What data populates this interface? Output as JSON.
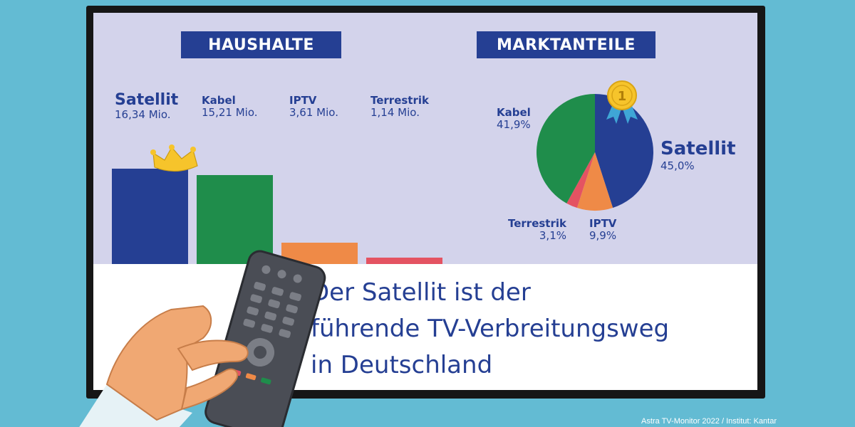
{
  "headers": {
    "households": "HAUSHALTE",
    "market_share": "MARKTANTEILE"
  },
  "headline": [
    "Der Satellit ist der",
    "führende TV-Verbreitungsweg",
    "in Deutschland"
  ],
  "source": "Astra TV-Monitor 2022 / Institut: Kantar",
  "badge": "1",
  "colors": {
    "satellit": "#253f93",
    "kabel": "#1f8d4b",
    "iptv": "#ef8a47",
    "terrestrik": "#e45362"
  },
  "chart_data": [
    {
      "type": "bar",
      "title": "HAUSHALTE",
      "categories": [
        "Satellit",
        "Kabel",
        "IPTV",
        "Terrestrik"
      ],
      "values": [
        16.34,
        15.21,
        3.61,
        1.14
      ],
      "unit": "Mio.",
      "labels": [
        "16,34 Mio.",
        "15,21 Mio.",
        "3,61 Mio.",
        "1,14 Mio."
      ]
    },
    {
      "type": "pie",
      "title": "MARKTANTEILE",
      "categories": [
        "Satellit",
        "IPTV",
        "Terrestrik",
        "Kabel"
      ],
      "values": [
        45.0,
        9.9,
        3.1,
        41.9
      ],
      "labels": [
        "45,0%",
        "9,9%",
        "3,1%",
        "41,9%"
      ]
    }
  ]
}
